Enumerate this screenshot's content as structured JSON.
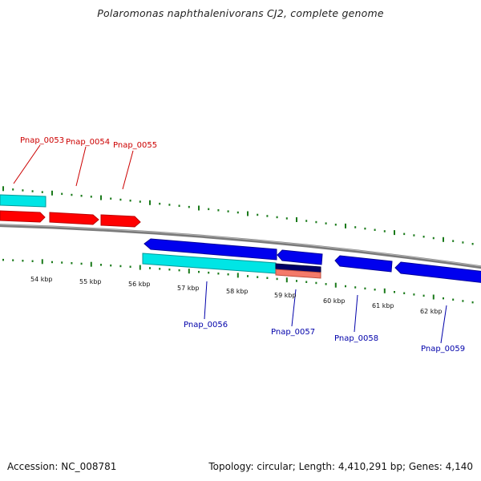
{
  "header": {
    "title": "Polaromonas naphthalenivorans CJ2, complete genome"
  },
  "footer": {
    "accession": "Accession: NC_008781",
    "summary": "Topology: circular; Length: 4,410,291 bp; Genes: 4,140"
  },
  "scale": {
    "unit": "kbp",
    "labels": [
      "54 kbp",
      "55 kbp",
      "56 kbp",
      "57 kbp",
      "58 kbp",
      "59 kbp",
      "60 kbp",
      "61 kbp",
      "62 kbp"
    ]
  },
  "genes": {
    "forward": [
      "Pnap_0053",
      "Pnap_0054",
      "Pnap_0055"
    ],
    "reverse": [
      "Pnap_0056",
      "Pnap_0057",
      "Pnap_0058",
      "Pnap_0059"
    ]
  },
  "colors": {
    "forward_cds": "#ff0000",
    "forward_label": "#cc0000",
    "reverse_cds": "#0000ee",
    "reverse_label": "#0000aa",
    "cog_cyan": "#00e5e5",
    "cog_navy": "#000066",
    "cog_salmon": "#f47a6a",
    "backbone": "#808080",
    "ticks": "#1a7a1a"
  }
}
